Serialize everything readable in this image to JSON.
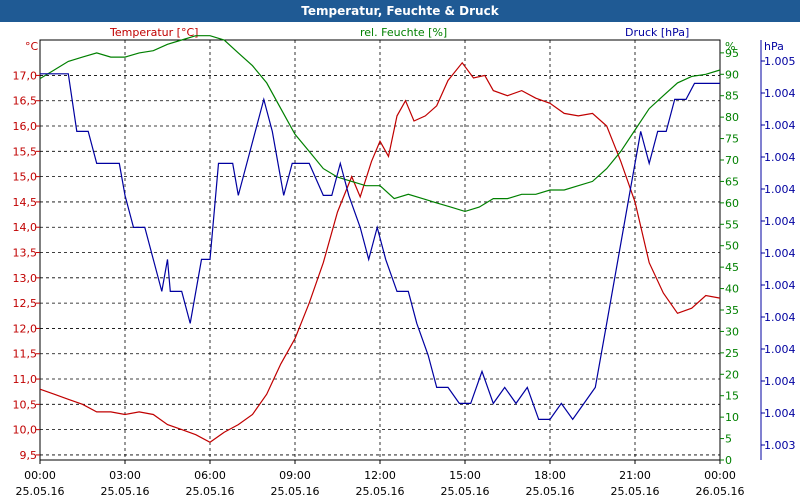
{
  "window": {
    "title": "Temperatur, Feuchte & Druck"
  },
  "chart_data": {
    "type": "line",
    "title": "Temperatur, Feuchte & Druck",
    "x_ticks": [
      {
        "time": "00:00",
        "date": "25.05.16"
      },
      {
        "time": "03:00",
        "date": "25.05.16"
      },
      {
        "time": "06:00",
        "date": "25.05.16"
      },
      {
        "time": "09:00",
        "date": "25.05.16"
      },
      {
        "time": "12:00",
        "date": "25.05.16"
      },
      {
        "time": "15:00",
        "date": "25.05.16"
      },
      {
        "time": "18:00",
        "date": "25.05.16"
      },
      {
        "time": "21:00",
        "date": "25.05.16"
      },
      {
        "time": "00:00",
        "date": "26.05.16"
      }
    ],
    "x_range_hours": [
      0,
      24
    ],
    "axes": {
      "temperature": {
        "label": "Temperatur [°C]",
        "unit": "°C",
        "range": [
          9.4,
          17.7
        ],
        "ticks": [
          "9,5",
          "10,0",
          "10,5",
          "11,0",
          "11,5",
          "12,0",
          "12,5",
          "13,0",
          "13,5",
          "14,0",
          "14,5",
          "15,0",
          "15,5",
          "16,0",
          "16,5",
          "17,0"
        ],
        "color": "#c00000"
      },
      "humidity": {
        "label": "rel. Feuchte [%]",
        "unit": "%",
        "range": [
          0,
          98
        ],
        "ticks": [
          "0",
          "5",
          "10",
          "15",
          "20",
          "25",
          "30",
          "35",
          "40",
          "45",
          "50",
          "55",
          "60",
          "65",
          "70",
          "75",
          "80",
          "85",
          "90",
          "95"
        ],
        "color": "#008000"
      },
      "pressure": {
        "label": "Druck [hPa]",
        "unit": "hPa",
        "ticks": [
          "1.003",
          "1.004",
          "1.004",
          "1.004",
          "1.004",
          "1.004",
          "1.004",
          "1.004",
          "1.004",
          "1.004",
          "1.004",
          "1.004",
          "1.005"
        ],
        "color": "#0000a0"
      }
    },
    "grid": true,
    "series": [
      {
        "name": "Temperatur [°C]",
        "axis": "temperature",
        "color": "#c00000",
        "points": [
          [
            0,
            10.8
          ],
          [
            0.5,
            10.7
          ],
          [
            1,
            10.6
          ],
          [
            1.5,
            10.5
          ],
          [
            2,
            10.35
          ],
          [
            2.5,
            10.35
          ],
          [
            3,
            10.3
          ],
          [
            3.5,
            10.35
          ],
          [
            4,
            10.3
          ],
          [
            4.5,
            10.1
          ],
          [
            5,
            10.0
          ],
          [
            5.5,
            9.9
          ],
          [
            6,
            9.75
          ],
          [
            6.5,
            9.95
          ],
          [
            7,
            10.1
          ],
          [
            7.5,
            10.3
          ],
          [
            8,
            10.7
          ],
          [
            8.5,
            11.3
          ],
          [
            9,
            11.8
          ],
          [
            9.5,
            12.5
          ],
          [
            10,
            13.3
          ],
          [
            10.5,
            14.3
          ],
          [
            11,
            15.0
          ],
          [
            11.3,
            14.6
          ],
          [
            11.7,
            15.3
          ],
          [
            12,
            15.7
          ],
          [
            12.3,
            15.4
          ],
          [
            12.6,
            16.2
          ],
          [
            12.9,
            16.5
          ],
          [
            13.2,
            16.1
          ],
          [
            13.6,
            16.2
          ],
          [
            14,
            16.4
          ],
          [
            14.4,
            16.9
          ],
          [
            14.9,
            17.25
          ],
          [
            15.3,
            16.95
          ],
          [
            15.7,
            17.0
          ],
          [
            16,
            16.7
          ],
          [
            16.5,
            16.6
          ],
          [
            17,
            16.7
          ],
          [
            17.5,
            16.55
          ],
          [
            18,
            16.45
          ],
          [
            18.5,
            16.25
          ],
          [
            19,
            16.2
          ],
          [
            19.5,
            16.25
          ],
          [
            20,
            16.0
          ],
          [
            20.5,
            15.3
          ],
          [
            21,
            14.5
          ],
          [
            21.5,
            13.3
          ],
          [
            22,
            12.7
          ],
          [
            22.5,
            12.3
          ],
          [
            23,
            12.4
          ],
          [
            23.5,
            12.65
          ],
          [
            24,
            12.6
          ]
        ]
      },
      {
        "name": "rel. Feuchte [%]",
        "axis": "humidity",
        "color": "#008000",
        "points": [
          [
            0,
            89
          ],
          [
            0.5,
            91
          ],
          [
            1,
            93
          ],
          [
            1.5,
            94
          ],
          [
            2,
            95
          ],
          [
            2.5,
            94
          ],
          [
            3,
            94
          ],
          [
            3.5,
            95
          ],
          [
            4,
            95.5
          ],
          [
            4.5,
            97
          ],
          [
            5,
            98
          ],
          [
            5.5,
            99
          ],
          [
            6,
            99
          ],
          [
            6.5,
            98
          ],
          [
            7,
            95
          ],
          [
            7.5,
            92
          ],
          [
            8,
            88
          ],
          [
            8.5,
            82
          ],
          [
            9,
            76
          ],
          [
            9.5,
            72
          ],
          [
            10,
            68
          ],
          [
            10.5,
            66
          ],
          [
            11,
            65
          ],
          [
            11.5,
            64
          ],
          [
            12,
            64
          ],
          [
            12.5,
            61
          ],
          [
            13,
            62
          ],
          [
            13.5,
            61
          ],
          [
            14,
            60
          ],
          [
            14.5,
            59
          ],
          [
            15,
            58
          ],
          [
            15.5,
            59
          ],
          [
            16,
            61
          ],
          [
            16.5,
            61
          ],
          [
            17,
            62
          ],
          [
            17.5,
            62
          ],
          [
            18,
            63
          ],
          [
            18.5,
            63
          ],
          [
            19,
            64
          ],
          [
            19.5,
            65
          ],
          [
            20,
            68
          ],
          [
            20.5,
            72
          ],
          [
            21,
            77
          ],
          [
            21.5,
            82
          ],
          [
            22,
            85
          ],
          [
            22.5,
            88
          ],
          [
            23,
            89.5
          ],
          [
            23.5,
            90
          ],
          [
            24,
            91
          ]
        ]
      },
      {
        "name": "Druck [hPa]",
        "axis": "pressure",
        "color": "#0000a0",
        "levels_note": "",
        "points": [
          [
            0,
            11.6
          ],
          [
            0.5,
            11.6
          ],
          [
            1,
            11.6
          ],
          [
            1.3,
            9.8
          ],
          [
            1.7,
            9.8
          ],
          [
            2,
            8.8
          ],
          [
            2.8,
            8.8
          ],
          [
            3,
            7.8
          ],
          [
            3.3,
            6.8
          ],
          [
            3.7,
            6.8
          ],
          [
            4,
            5.8
          ],
          [
            4.3,
            4.8
          ],
          [
            4.5,
            5.8
          ],
          [
            4.6,
            4.8
          ],
          [
            5,
            4.8
          ],
          [
            5.3,
            3.8
          ],
          [
            5.7,
            5.8
          ],
          [
            6,
            5.8
          ],
          [
            6.3,
            8.8
          ],
          [
            6.8,
            8.8
          ],
          [
            7,
            7.8
          ],
          [
            7.3,
            8.8
          ],
          [
            7.6,
            9.8
          ],
          [
            7.9,
            10.8
          ],
          [
            8.2,
            9.8
          ],
          [
            8.6,
            7.8
          ],
          [
            8.9,
            8.8
          ],
          [
            9.5,
            8.8
          ],
          [
            10,
            7.8
          ],
          [
            10.3,
            7.8
          ],
          [
            10.6,
            8.8
          ],
          [
            10.9,
            7.8
          ],
          [
            11.3,
            6.8
          ],
          [
            11.6,
            5.8
          ],
          [
            11.9,
            6.8
          ],
          [
            12.2,
            5.8
          ],
          [
            12.6,
            4.8
          ],
          [
            13,
            4.8
          ],
          [
            13.3,
            3.8
          ],
          [
            13.7,
            2.8
          ],
          [
            14,
            1.8
          ],
          [
            14.4,
            1.8
          ],
          [
            14.8,
            1.3
          ],
          [
            15.2,
            1.3
          ],
          [
            15.6,
            2.3
          ],
          [
            16,
            1.3
          ],
          [
            16.4,
            1.8
          ],
          [
            16.8,
            1.3
          ],
          [
            17.2,
            1.8
          ],
          [
            17.6,
            0.8
          ],
          [
            18,
            0.8
          ],
          [
            18.4,
            1.3
          ],
          [
            18.8,
            0.8
          ],
          [
            19.2,
            1.3
          ],
          [
            19.6,
            1.8
          ],
          [
            20,
            3.8
          ],
          [
            20.4,
            5.8
          ],
          [
            20.8,
            7.8
          ],
          [
            21.2,
            9.8
          ],
          [
            21.5,
            8.8
          ],
          [
            21.8,
            9.8
          ],
          [
            22.1,
            9.8
          ],
          [
            22.4,
            10.8
          ],
          [
            22.8,
            10.8
          ],
          [
            23.1,
            11.3
          ],
          [
            23.5,
            11.3
          ],
          [
            24,
            11.3
          ]
        ]
      }
    ]
  }
}
